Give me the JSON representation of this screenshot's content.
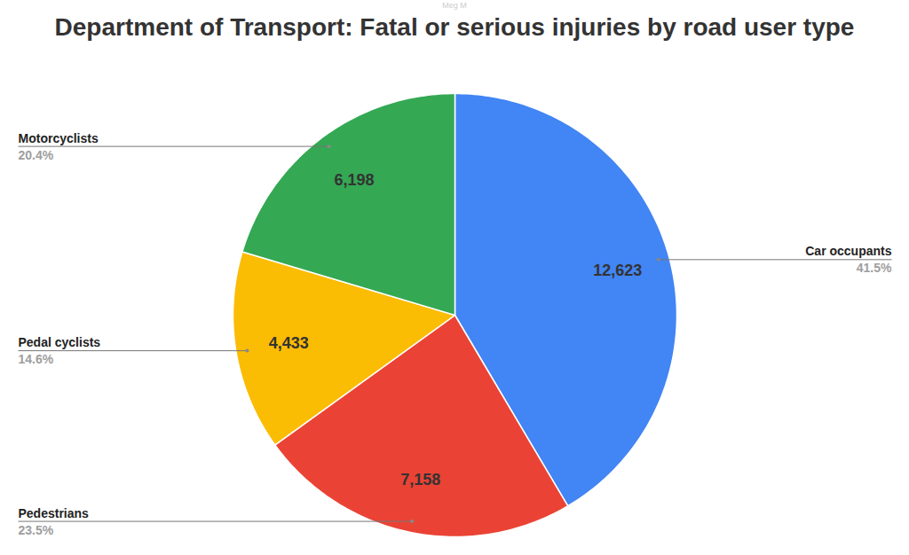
{
  "chart_data": {
    "type": "pie",
    "title": "Department of Transport: Fatal or serious injuries by road user type",
    "credit": "Meg M",
    "categories": [
      "Car occupants",
      "Pedestrians",
      "Pedal cyclists",
      "Motorcyclists"
    ],
    "values": [
      12623,
      7158,
      4433,
      6198
    ],
    "value_labels": [
      "12,623",
      "7,158",
      "4,433",
      "6,198"
    ],
    "percentages": [
      {
        "value": 41.5,
        "label": "41.5%"
      },
      {
        "value": 23.5,
        "label": "23.5%"
      },
      {
        "value": 14.6,
        "label": "14.6%"
      },
      {
        "value": 20.4,
        "label": "20.4%"
      }
    ],
    "colors": [
      "#4285f4",
      "#ea4335",
      "#fbbc04",
      "#34a853"
    ],
    "data_labels": true
  }
}
